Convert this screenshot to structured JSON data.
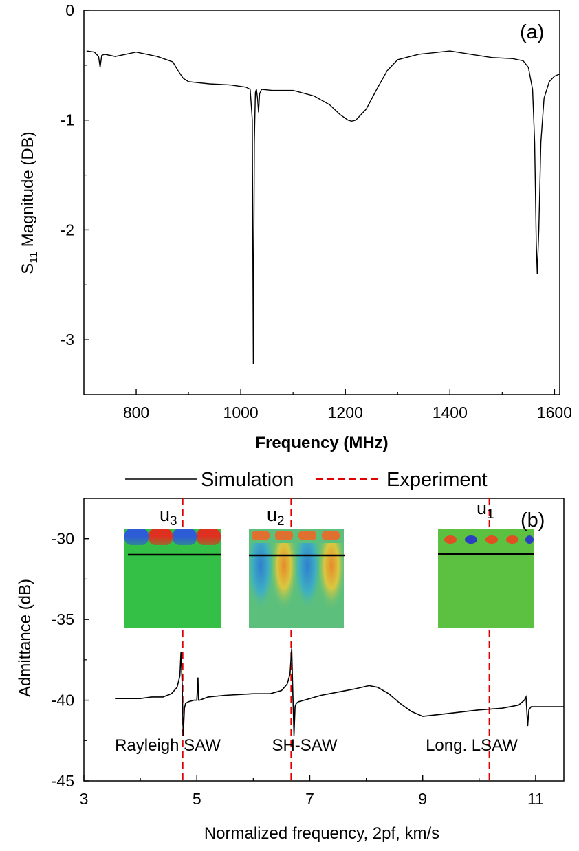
{
  "chart_data": [
    {
      "type": "line",
      "panel_label": "(a)",
      "xlabel": "Frequency (MHz)",
      "ylabel_main": "S",
      "ylabel_sub": "11",
      "ylabel_rest": " Magnitude (DB)",
      "xlim": [
        700,
        1610
      ],
      "ylim": [
        -3.5,
        0
      ],
      "xticks": [
        800,
        1000,
        1200,
        1400,
        1600
      ],
      "xtick_labels": [
        "800",
        "1000",
        "1200",
        "1400",
        "1600"
      ],
      "yticks": [
        0,
        -1,
        -2,
        -3
      ],
      "ytick_labels": [
        "0",
        "-1",
        "-2",
        "-3"
      ],
      "grid": false,
      "series": [
        {
          "color": "#000000",
          "x": [
            705,
            720,
            728,
            731,
            734,
            740,
            760,
            800,
            840,
            870,
            880,
            890,
            900,
            940,
            980,
            1010,
            1018,
            1022,
            1024,
            1026,
            1028,
            1030,
            1032,
            1034,
            1036,
            1040,
            1060,
            1100,
            1140,
            1170,
            1190,
            1205,
            1212,
            1220,
            1240,
            1260,
            1280,
            1300,
            1340,
            1380,
            1400,
            1440,
            1480,
            1520,
            1540,
            1550,
            1558,
            1562,
            1565,
            1567,
            1570,
            1574,
            1580,
            1590,
            1600,
            1610
          ],
          "y": [
            -0.37,
            -0.38,
            -0.42,
            -0.52,
            -0.41,
            -0.4,
            -0.42,
            -0.38,
            -0.42,
            -0.47,
            -0.55,
            -0.62,
            -0.65,
            -0.67,
            -0.68,
            -0.7,
            -0.72,
            -1.0,
            -3.22,
            -1.2,
            -0.75,
            -0.72,
            -0.8,
            -0.93,
            -0.76,
            -0.72,
            -0.73,
            -0.73,
            -0.78,
            -0.86,
            -0.95,
            -1.0,
            -1.01,
            -1.0,
            -0.9,
            -0.72,
            -0.55,
            -0.45,
            -0.4,
            -0.38,
            -0.37,
            -0.4,
            -0.43,
            -0.44,
            -0.46,
            -0.52,
            -0.72,
            -1.2,
            -2.1,
            -2.4,
            -2.0,
            -1.2,
            -0.8,
            -0.65,
            -0.6,
            -0.58
          ]
        }
      ]
    },
    {
      "type": "line",
      "panel_label": "(b)",
      "xlabel": "Normalized frequency, 2pf, km/s",
      "ylabel": "Admittance (dB)",
      "xlim": [
        3,
        11.5
      ],
      "ylim": [
        -45,
        -27.5
      ],
      "xticks": [
        3,
        5,
        7,
        9,
        11
      ],
      "xtick_labels": [
        "3",
        "5",
        "7",
        "9",
        "11"
      ],
      "yticks": [
        -30,
        -35,
        -40,
        -45
      ],
      "ytick_labels": [
        "-30",
        "-35",
        "-40",
        "-45"
      ],
      "grid": false,
      "legend": {
        "placement": "top-center",
        "entries": [
          {
            "label": "Simulation",
            "style": "solid",
            "color": "#000000"
          },
          {
            "label": "Experiment",
            "style": "dashed",
            "color": "#e00000"
          }
        ]
      },
      "series": [
        {
          "name": "Simulation",
          "color": "#000000",
          "x": [
            3.55,
            4.0,
            4.2,
            4.4,
            4.55,
            4.65,
            4.7,
            4.72,
            4.74,
            4.76,
            4.78,
            4.8,
            4.85,
            4.95,
            5.0,
            5.02,
            5.03,
            5.05,
            5.2,
            5.5,
            6.0,
            6.3,
            6.5,
            6.6,
            6.65,
            6.68,
            6.7,
            6.72,
            6.74,
            6.76,
            6.8,
            6.9,
            7.2,
            7.5,
            7.8,
            8.05,
            8.2,
            8.4,
            8.6,
            8.8,
            9.0,
            9.5,
            10.0,
            10.4,
            10.7,
            10.8,
            10.83,
            10.86,
            10.88,
            10.92,
            11.0,
            11.2,
            11.5
          ],
          "y": [
            -39.9,
            -39.9,
            -39.8,
            -39.8,
            -39.6,
            -39.2,
            -38.5,
            -37.0,
            -39.0,
            -42.2,
            -40.5,
            -40.2,
            -40.1,
            -40.0,
            -40.0,
            -38.6,
            -40.0,
            -40.0,
            -39.8,
            -39.7,
            -39.6,
            -39.6,
            -39.4,
            -39.0,
            -38.4,
            -36.8,
            -39.5,
            -42.2,
            -40.4,
            -40.2,
            -40.1,
            -40.0,
            -39.7,
            -39.5,
            -39.3,
            -39.1,
            -39.2,
            -39.6,
            -40.2,
            -40.7,
            -41.0,
            -40.8,
            -40.6,
            -40.5,
            -40.3,
            -40.0,
            -39.8,
            -41.6,
            -40.6,
            -40.4,
            -40.4,
            -40.4,
            -40.4
          ]
        }
      ],
      "experiment_lines_x": [
        4.75,
        6.67,
        10.18
      ],
      "inset_labels": [
        {
          "main": "u",
          "sub": "3",
          "x": 4.75
        },
        {
          "main": "u",
          "sub": "2",
          "x": 6.67
        },
        {
          "main": "u",
          "sub": "1",
          "x": 10.18
        }
      ],
      "mode_labels": [
        {
          "text": "Rayleigh SAW",
          "x": 4.6
        },
        {
          "text": "SH-SAW",
          "x": 6.7
        },
        {
          "text": "Long. LSAW",
          "x": 9.9
        }
      ],
      "inset_color_maps": [
        {
          "name": "u3",
          "colors_top": [
            "#2e5bd6",
            "#e03020",
            "#2e5bd6",
            "#e03020"
          ],
          "bulk": "#34c046"
        },
        {
          "name": "u2",
          "colors_top": [
            "#e07030",
            "#e07030",
            "#e07030",
            "#e07030"
          ],
          "bulk": "#46c0a0"
        },
        {
          "name": "u1",
          "colors_top": [
            "#2a40c0",
            "#e05020",
            "#2a40c0",
            "#e05020"
          ],
          "bulk": "#5cc040"
        }
      ]
    }
  ]
}
